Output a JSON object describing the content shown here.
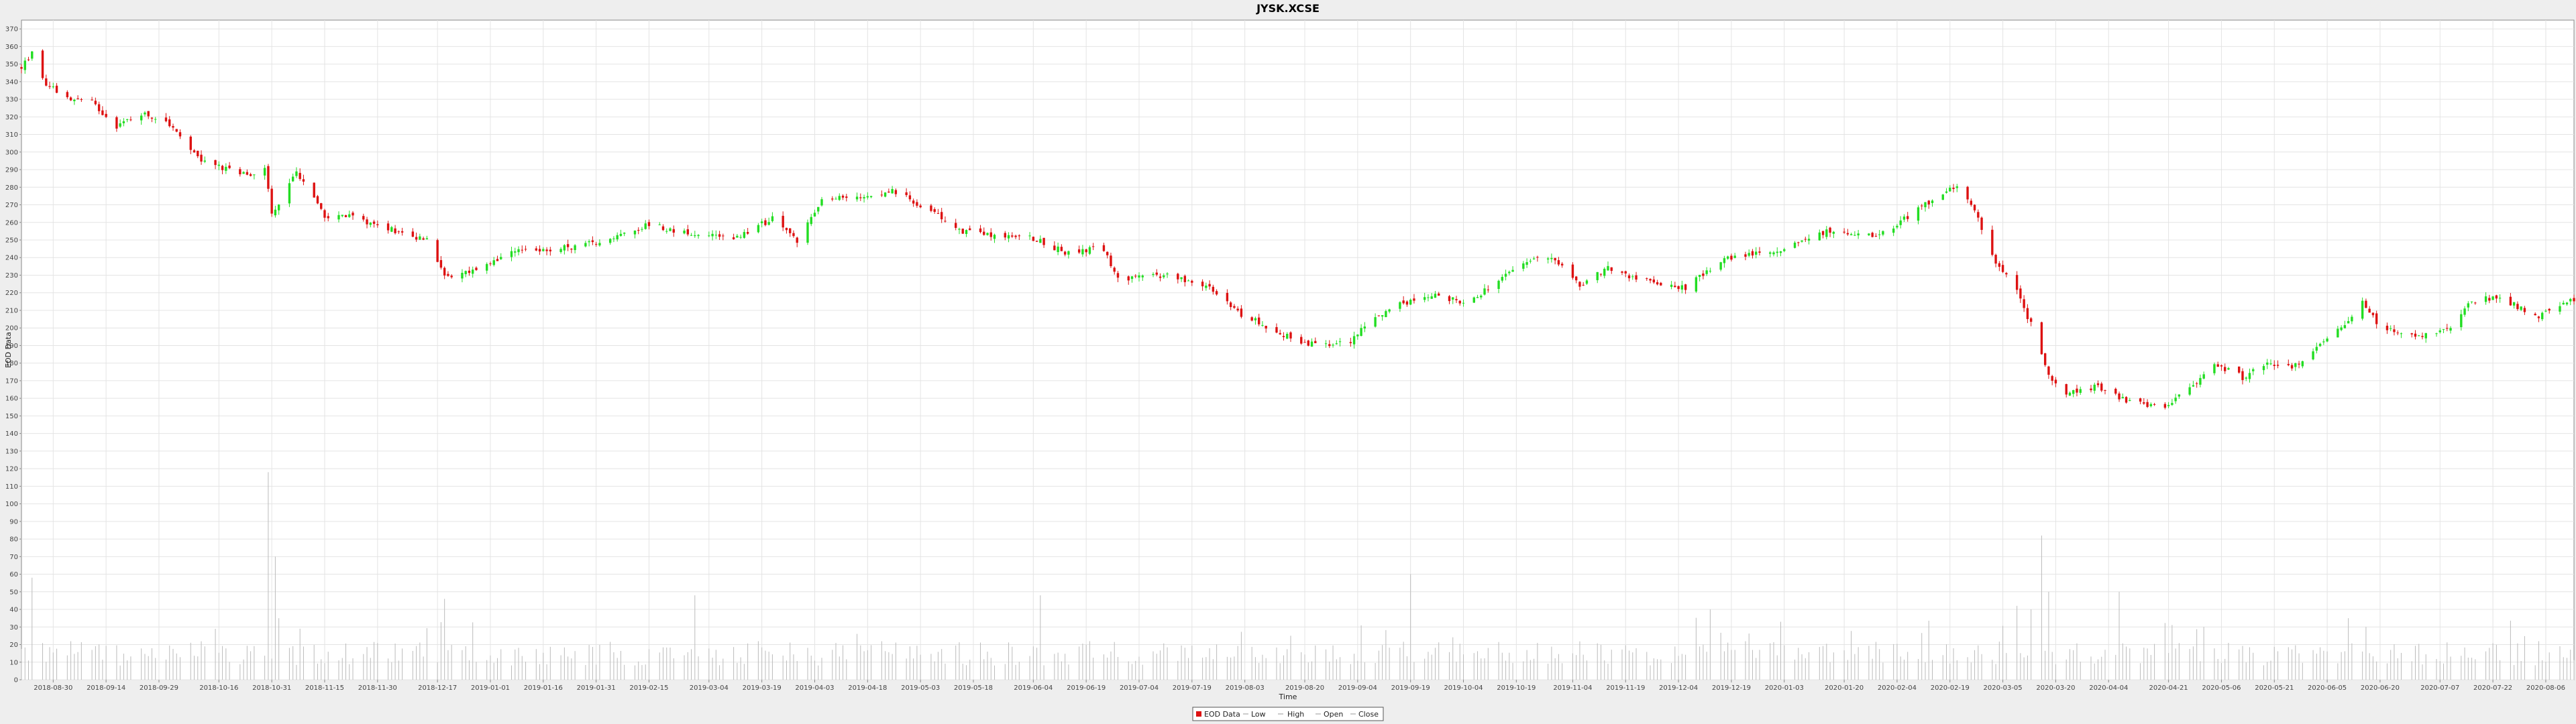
{
  "chart_data": {
    "type": "candlestick",
    "title": "JYSK.XCSE",
    "xlabel": "Time",
    "ylabel": "EOD Data",
    "ylim": [
      0,
      375
    ],
    "yticks": [
      0,
      10,
      20,
      30,
      40,
      50,
      60,
      70,
      80,
      90,
      100,
      110,
      120,
      130,
      140,
      150,
      160,
      170,
      180,
      190,
      200,
      210,
      220,
      230,
      240,
      250,
      260,
      270,
      280,
      290,
      300,
      310,
      320,
      330,
      340,
      350,
      360,
      370
    ],
    "xrange": [
      "2018-08-21",
      "2020-08-14"
    ],
    "xticks": [
      "2018-08-30",
      "2018-09-14",
      "2018-09-29",
      "2018-10-16",
      "2018-10-31",
      "2018-11-15",
      "2018-11-30",
      "2018-12-17",
      "2019-01-01",
      "2019-01-16",
      "2019-01-31",
      "2019-02-15",
      "2019-03-04",
      "2019-03-19",
      "2019-04-03",
      "2019-04-18",
      "2019-05-03",
      "2019-05-18",
      "2019-06-04",
      "2019-06-19",
      "2019-07-04",
      "2019-07-19",
      "2019-08-03",
      "2019-08-20",
      "2019-09-04",
      "2019-09-19",
      "2019-10-04",
      "2019-10-19",
      "2019-11-04",
      "2019-11-19",
      "2019-12-04",
      "2019-12-19",
      "2020-01-03",
      "2020-01-20",
      "2020-02-04",
      "2020-02-19",
      "2020-03-05",
      "2020-03-20",
      "2020-04-04",
      "2020-04-21",
      "2020-05-06",
      "2020-05-21",
      "2020-06-05",
      "2020-06-20",
      "2020-07-07",
      "2020-07-22",
      "2020-08-06"
    ],
    "grid": true,
    "legend_position": "bottom-center",
    "legend": [
      "EOD Data",
      "Low",
      "High",
      "Open",
      "Close"
    ],
    "price_path": [
      [
        "2018-08-21",
        348
      ],
      [
        "2018-08-24",
        356
      ],
      [
        "2018-08-28",
        338
      ],
      [
        "2018-09-05",
        330
      ],
      [
        "2018-09-10",
        328
      ],
      [
        "2018-09-17",
        315
      ],
      [
        "2018-09-24",
        322
      ],
      [
        "2018-10-01",
        318
      ],
      [
        "2018-10-10",
        296
      ],
      [
        "2018-10-17",
        291
      ],
      [
        "2018-10-25",
        286
      ],
      [
        "2018-10-29",
        292
      ],
      [
        "2018-10-31",
        265
      ],
      [
        "2018-11-05",
        282
      ],
      [
        "2018-11-07",
        289
      ],
      [
        "2018-11-15",
        264
      ],
      [
        "2018-11-23",
        263
      ],
      [
        "2018-12-01",
        258
      ],
      [
        "2018-12-14",
        250
      ],
      [
        "2018-12-19",
        230
      ],
      [
        "2018-12-28",
        232
      ],
      [
        "2019-01-08",
        243
      ],
      [
        "2019-01-24",
        246
      ],
      [
        "2019-02-04",
        251
      ],
      [
        "2019-02-15",
        259
      ],
      [
        "2019-03-01",
        252
      ],
      [
        "2019-03-06",
        252
      ],
      [
        "2019-03-12",
        252
      ],
      [
        "2019-03-22",
        262
      ],
      [
        "2019-03-29",
        250
      ],
      [
        "2019-04-05",
        272
      ],
      [
        "2019-04-18",
        276
      ],
      [
        "2019-04-25",
        278
      ],
      [
        "2019-05-03",
        270
      ],
      [
        "2019-05-15",
        255
      ],
      [
        "2019-05-28",
        252
      ],
      [
        "2019-06-04",
        251
      ],
      [
        "2019-06-13",
        243
      ],
      [
        "2019-06-24",
        245
      ],
      [
        "2019-06-28",
        228
      ],
      [
        "2019-07-12",
        230
      ],
      [
        "2019-07-22",
        225
      ],
      [
        "2019-08-02",
        208
      ],
      [
        "2019-08-14",
        196
      ],
      [
        "2019-08-23",
        190
      ],
      [
        "2019-09-01",
        191
      ],
      [
        "2019-09-08",
        205
      ],
      [
        "2019-09-13",
        211
      ],
      [
        "2019-09-24",
        219
      ],
      [
        "2019-10-04",
        215
      ],
      [
        "2019-10-11",
        222
      ],
      [
        "2019-10-22",
        238
      ],
      [
        "2019-10-30",
        240
      ],
      [
        "2019-11-06",
        224
      ],
      [
        "2019-11-14",
        234
      ],
      [
        "2019-11-22",
        228
      ],
      [
        "2019-12-06",
        223
      ],
      [
        "2019-12-17",
        240
      ],
      [
        "2019-12-28",
        243
      ],
      [
        "2020-01-08",
        248
      ],
      [
        "2020-01-15",
        255
      ],
      [
        "2020-01-27",
        252
      ],
      [
        "2020-02-03",
        258
      ],
      [
        "2020-02-14",
        273
      ],
      [
        "2020-02-21",
        281
      ],
      [
        "2020-02-27",
        262
      ],
      [
        "2020-03-03",
        235
      ],
      [
        "2020-03-07",
        230
      ],
      [
        "2020-03-13",
        202
      ],
      [
        "2020-03-18",
        172
      ],
      [
        "2020-03-22",
        163
      ],
      [
        "2020-04-01",
        167
      ],
      [
        "2020-04-09",
        158
      ],
      [
        "2020-04-20",
        155
      ],
      [
        "2020-04-28",
        168
      ],
      [
        "2020-05-04",
        180
      ],
      [
        "2020-05-12",
        172
      ],
      [
        "2020-05-18",
        180
      ],
      [
        "2020-05-28",
        178
      ],
      [
        "2020-06-05",
        195
      ],
      [
        "2020-06-10",
        202
      ],
      [
        "2020-06-15",
        215
      ],
      [
        "2020-06-20",
        200
      ],
      [
        "2020-06-30",
        195
      ],
      [
        "2020-07-10",
        200
      ],
      [
        "2020-07-16",
        215
      ],
      [
        "2020-07-24",
        218
      ],
      [
        "2020-08-03",
        206
      ],
      [
        "2020-08-14",
        216
      ]
    ],
    "volume_spikes": [
      [
        "2018-08-24",
        58
      ],
      [
        "2018-10-30",
        118
      ],
      [
        "2018-11-01",
        70
      ],
      [
        "2018-11-02",
        35
      ],
      [
        "2018-12-19",
        46
      ],
      [
        "2019-02-28",
        48
      ],
      [
        "2019-06-06",
        48
      ],
      [
        "2019-09-19",
        60
      ],
      [
        "2019-12-13",
        40
      ],
      [
        "2020-03-09",
        42
      ],
      [
        "2020-03-13",
        40
      ],
      [
        "2020-03-16",
        82
      ],
      [
        "2020-03-18",
        50
      ],
      [
        "2020-04-07",
        50
      ],
      [
        "2020-05-01",
        30
      ],
      [
        "2020-06-11",
        35
      ]
    ],
    "colors": {
      "up": "#22dd22",
      "down": "#dd1111",
      "volume": "#bbbbbb",
      "grid": "#e4e4e4",
      "plot_bg": "#ffffff",
      "page_bg": "#eeeeee"
    }
  }
}
